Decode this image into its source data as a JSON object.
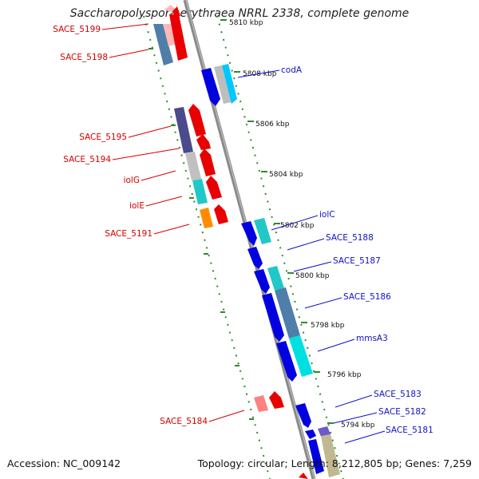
{
  "title": "Saccharopolyspora erythraea NRRL 2338, complete genome",
  "accession": "Accession: NC_009142",
  "topology": "Topology: circular; Length: 8,212,805 bp; Genes: 7,259",
  "colors": {
    "backbone": "#888888",
    "track": "#3a9a2a",
    "minus_label": "#d40000",
    "plus_label": "#1010c8"
  },
  "kbp_ticks": [
    {
      "label": "5810 kbp",
      "value": 5810
    },
    {
      "label": "5808 kbp",
      "value": 5808
    },
    {
      "label": "5806 kbp",
      "value": 5806
    },
    {
      "label": "5804 kbp",
      "value": 5804
    },
    {
      "label": "5802 kbp",
      "value": 5802
    },
    {
      "label": "5800 kbp",
      "value": 5800
    },
    {
      "label": "5798 kbp",
      "value": 5798
    },
    {
      "label": "5796 kbp",
      "value": 5796
    },
    {
      "label": "5794 kbp",
      "value": 5794
    }
  ],
  "minus_genes": [
    {
      "label": "SACE_5199",
      "color": "#ffc0c0"
    },
    {
      "label": "SACE_5198",
      "color": "#e80000"
    },
    {
      "label": "SACE_5195",
      "color": "#e80000"
    },
    {
      "label": "SACE_5194",
      "color": "#e80000"
    },
    {
      "label": "iolG",
      "color": "#e80000"
    },
    {
      "label": "iolE",
      "color": "#e80000"
    },
    {
      "label": "SACE_5191",
      "color": "#e80000"
    },
    {
      "label": "SACE_5184",
      "color": "#e80000"
    }
  ],
  "plus_genes": [
    {
      "label": "codA",
      "color": "#0000e0"
    },
    {
      "label": "iolC",
      "color": "#0000e0"
    },
    {
      "label": "SACE_5188",
      "color": "#0000e0"
    },
    {
      "label": "SACE_5187",
      "color": "#0000e0"
    },
    {
      "label": "SACE_5186",
      "color": "#0000e0"
    },
    {
      "label": "mmsA3",
      "color": "#0000e0"
    },
    {
      "label": "SACE_5183",
      "color": "#0000e0"
    },
    {
      "label": "SACE_5182",
      "color": "#0000e0"
    },
    {
      "label": "SACE_5181",
      "color": "#0000e0"
    }
  ]
}
